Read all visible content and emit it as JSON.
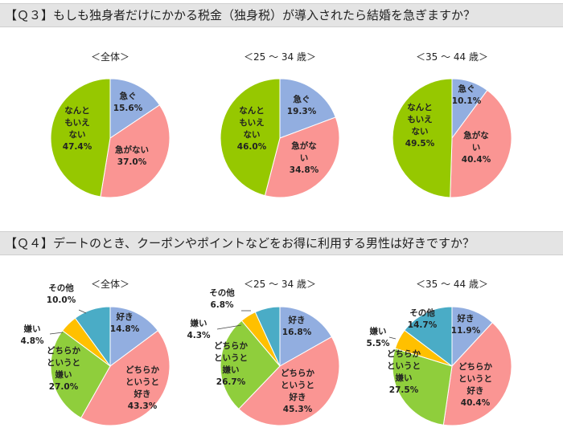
{
  "q3": {
    "title": "【Ｑ３】もしも独身者だけにかかる税金（独身税）が導入されたら結婚を急ぎますか？"
  },
  "q4": {
    "title": "【Ｑ４】デートのとき、クーポンやポイントなどをお得に利用する男性は好きですか？"
  },
  "colors": {
    "blue": "#92aee0",
    "pink": "#fa9593",
    "green": "#8fce3c",
    "lime": "#96c800",
    "yellow": "#ffc000",
    "teal": "#4aacc6"
  },
  "chart_data": [
    {
      "type": "pie",
      "title": "＜全体＞",
      "slices": [
        {
          "label": "急ぐ",
          "value": 15.6,
          "pct": "15.6%",
          "color": "#92aee0"
        },
        {
          "label": "急がない",
          "value": 37.0,
          "pct": "37.0%",
          "color": "#fa9593"
        },
        {
          "label": "なんともいえない",
          "value": 47.4,
          "pct": "47.4%",
          "color": "#96c800"
        }
      ]
    },
    {
      "type": "pie",
      "title": "＜25 ～ 34 歳＞",
      "slices": [
        {
          "label": "急ぐ",
          "value": 19.3,
          "pct": "19.3%",
          "color": "#92aee0"
        },
        {
          "label": "急がない",
          "value": 34.8,
          "pct": "34.8%",
          "color": "#fa9593"
        },
        {
          "label": "なんともいえない",
          "value": 46.0,
          "pct": "46.0%",
          "color": "#96c800"
        }
      ]
    },
    {
      "type": "pie",
      "title": "＜35 ～ 44 歳＞",
      "slices": [
        {
          "label": "急ぐ",
          "value": 10.1,
          "pct": "10.1%",
          "color": "#92aee0"
        },
        {
          "label": "急がない",
          "value": 40.4,
          "pct": "40.4%",
          "color": "#fa9593"
        },
        {
          "label": "なんともいえない",
          "value": 49.5,
          "pct": "49.5%",
          "color": "#96c800"
        }
      ]
    },
    {
      "type": "pie",
      "title": "＜全体＞",
      "slices": [
        {
          "label": "好き",
          "value": 14.8,
          "pct": "14.8%",
          "color": "#92aee0"
        },
        {
          "label": "どちらかというと好き",
          "value": 43.3,
          "pct": "43.3%",
          "color": "#fa9593"
        },
        {
          "label": "どちらかというと嫌い",
          "value": 27.0,
          "pct": "27.0%",
          "color": "#8fce3c"
        },
        {
          "label": "嫌い",
          "value": 4.8,
          "pct": "4.8%",
          "color": "#ffc000"
        },
        {
          "label": "その他",
          "value": 10.0,
          "pct": "10.0%",
          "color": "#4aacc6"
        }
      ]
    },
    {
      "type": "pie",
      "title": "＜25 ～ 34 歳＞",
      "slices": [
        {
          "label": "好き",
          "value": 16.8,
          "pct": "16.8%",
          "color": "#92aee0"
        },
        {
          "label": "どちらかというと好き",
          "value": 45.3,
          "pct": "45.3%",
          "color": "#fa9593"
        },
        {
          "label": "どちらかというと嫌い",
          "value": 26.7,
          "pct": "26.7%",
          "color": "#8fce3c"
        },
        {
          "label": "嫌い",
          "value": 4.3,
          "pct": "4.3%",
          "color": "#ffc000"
        },
        {
          "label": "その他",
          "value": 6.8,
          "pct": "6.8%",
          "color": "#4aacc6"
        }
      ]
    },
    {
      "type": "pie",
      "title": "＜35 ～ 44 歳＞",
      "slices": [
        {
          "label": "好き",
          "value": 11.9,
          "pct": "11.9%",
          "color": "#92aee0"
        },
        {
          "label": "どちらかというと好き",
          "value": 40.4,
          "pct": "40.4%",
          "color": "#fa9593"
        },
        {
          "label": "どちらかというと嫌い",
          "value": 27.5,
          "pct": "27.5%",
          "color": "#8fce3c"
        },
        {
          "label": "嫌い",
          "value": 5.5,
          "pct": "5.5%",
          "color": "#ffc000"
        },
        {
          "label": "その他",
          "value": 14.7,
          "pct": "14.7%",
          "color": "#4aacc6"
        }
      ]
    }
  ]
}
